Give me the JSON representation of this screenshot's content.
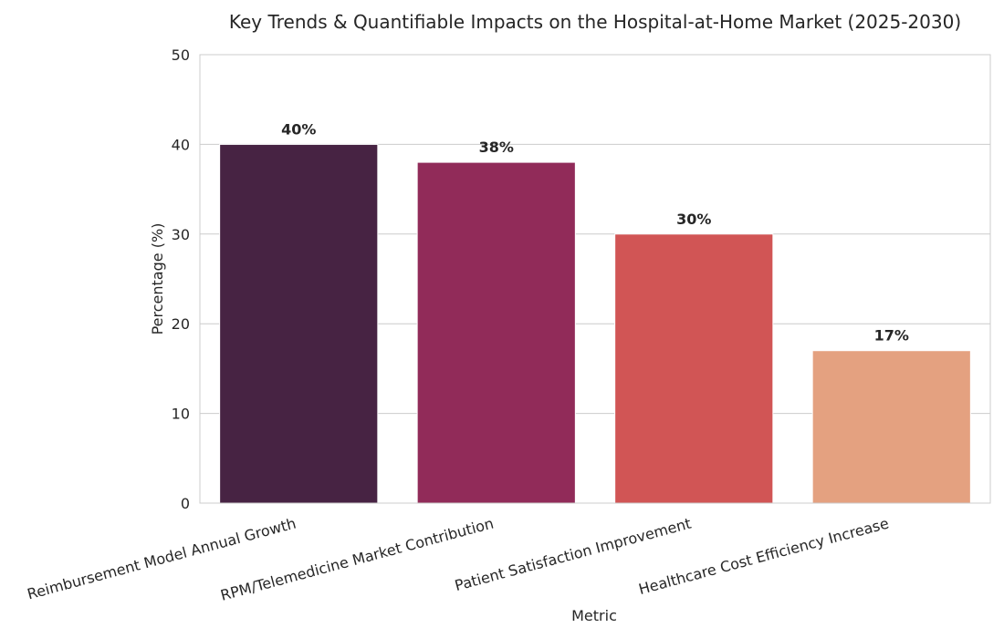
{
  "chart_data": {
    "type": "bar",
    "title": "Key Trends & Quantifiable Impacts on the Hospital-at-Home Market (2025-2030)",
    "xlabel": "Metric",
    "ylabel": "Percentage (%)",
    "ylim": [
      0,
      50
    ],
    "yticks": [
      0,
      10,
      20,
      30,
      40,
      50
    ],
    "grid": true,
    "categories": [
      "Reimbursement Model Annual Growth",
      "RPM/Telemedicine Market Contribution",
      "Patient Satisfaction Improvement",
      "Healthcare Cost Efficiency Increase"
    ],
    "values": [
      40,
      38,
      30,
      17
    ],
    "data_labels": [
      "40%",
      "38%",
      "30%",
      "17%"
    ],
    "colors": [
      "#472343",
      "#912b59",
      "#d15555",
      "#e4a180"
    ]
  }
}
